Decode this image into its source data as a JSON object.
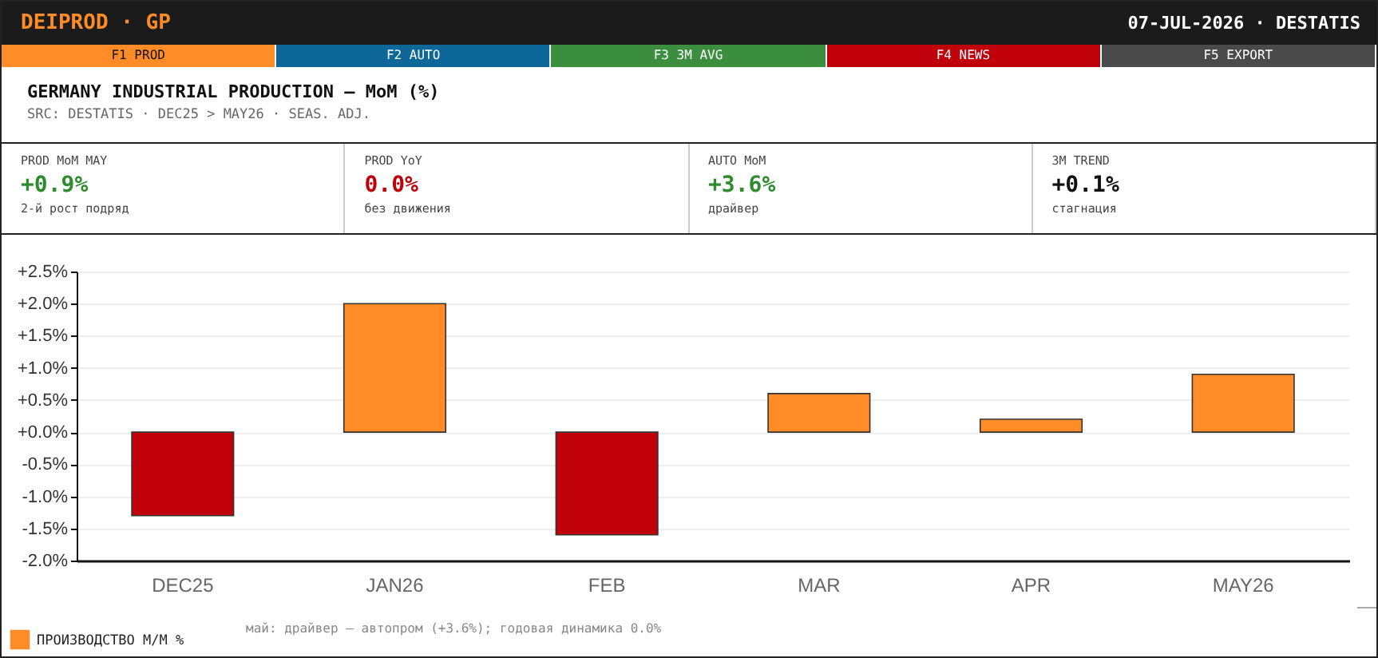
{
  "chart_data": {
    "type": "bar",
    "title": "GERMANY INDUSTRIAL PRODUCTION — MoM (%)",
    "subtitle": "SRC: DESTATIS · DEC25 > MAY26 · SEAS. ADJ.",
    "annotations": [
      "DEIPROD · GP",
      "07-JUL-2026 · DESTATIS",
      "F1 PROD",
      "F2 AUTO",
      "F3 3M AVG",
      "F4 NEWS",
      "F5 EXPORT",
      "PROD MoM MAY",
      "+0.9%",
      "2-й рост подряд",
      "PROD YoY",
      "0.0%",
      "без движения",
      "AUTO MoM",
      "+3.6%",
      "драйвер",
      "3M TREND",
      "+0.1%",
      "стагнация",
      "май: драйвер — автопром (+3.6%); годовая динамика 0.0%"
    ],
    "categories": [
      "DEC25",
      "JAN26",
      "FEB",
      "MAR",
      "APR",
      "MAY26"
    ],
    "series": [
      {
        "name": "ПРОИЗВОДСТВО М/М %",
        "color": "#ff8c26",
        "colors": [
          "#c0000a",
          "#ff8c26",
          "#c0000a",
          "#ff8c26",
          "#ff8c26",
          "#ff8c26"
        ],
        "values": [
          -1.3,
          2.0,
          -1.6,
          0.6,
          0.2,
          0.9
        ]
      }
    ],
    "ylim": [
      -2.0,
      2.5
    ],
    "yticks": [
      {
        "value": -2.0,
        "label": "-2.0%"
      },
      {
        "value": -1.5,
        "label": "-1.5%"
      },
      {
        "value": -1.0,
        "label": "-1.0%"
      },
      {
        "value": -0.5,
        "label": "-0.5%"
      },
      {
        "value": 0,
        "label": "+0.0%"
      },
      {
        "value": 0.5,
        "label": "+0.5%"
      },
      {
        "value": 1.0,
        "label": "+1.0%"
      },
      {
        "value": 1.5,
        "label": "+1.5%"
      },
      {
        "value": 2.0,
        "label": "+2.0%"
      },
      {
        "value": 2.5,
        "label": "+2.5%"
      }
    ],
    "grid": "y",
    "legend": "bottom"
  }
}
